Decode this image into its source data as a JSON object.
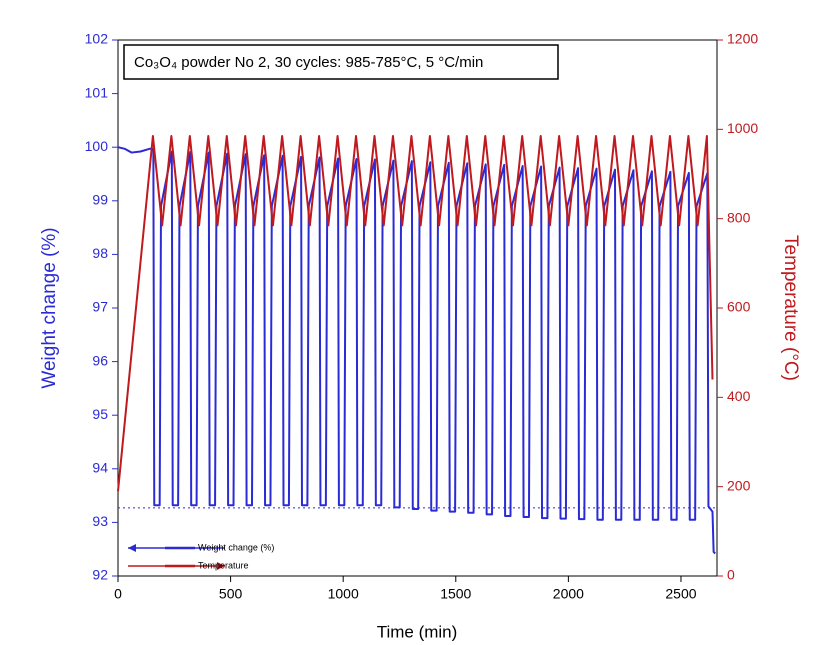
{
  "chart_data": {
    "type": "line",
    "title": "Co₃O₄ powder No 2, 30 cycles: 985-785°C, 5 °C/min",
    "xlabel": "Time (min)",
    "ylabel": "Weight change (%)",
    "y2label": "Temperature (°C)",
    "xlim": [
      0,
      2660
    ],
    "xticks": [
      0,
      500,
      1000,
      1500,
      2000,
      2500
    ],
    "ylim": [
      92,
      102
    ],
    "yticks": [
      92,
      93,
      94,
      95,
      96,
      97,
      98,
      99,
      100,
      101,
      102
    ],
    "y2lim": [
      0,
      1200
    ],
    "y2ticks": [
      0,
      200,
      400,
      600,
      800,
      1000,
      1200
    ],
    "reference_line": 93.27,
    "legend": "lower left",
    "series": [
      {
        "name": "Weight change (%)",
        "color": "#2b2bd6",
        "axis": "y",
        "x": [
          0,
          30,
          60,
          100,
          140,
          157,
          161,
          185,
          191,
          239,
          243,
          267,
          273,
          321,
          325,
          349,
          355,
          403,
          407,
          431,
          437,
          485,
          489,
          513,
          519,
          567,
          571,
          595,
          601,
          649,
          653,
          677,
          683,
          731,
          735,
          759,
          765,
          813,
          817,
          841,
          847,
          895,
          899,
          923,
          929,
          977,
          981,
          1005,
          1011,
          1059,
          1063,
          1087,
          1093,
          1141,
          1145,
          1169,
          1175,
          1223,
          1227,
          1251,
          1257,
          1305,
          1309,
          1333,
          1339,
          1387,
          1391,
          1415,
          1421,
          1469,
          1473,
          1497,
          1503,
          1551,
          1555,
          1579,
          1585,
          1633,
          1637,
          1661,
          1667,
          1715,
          1719,
          1743,
          1749,
          1797,
          1801,
          1825,
          1831,
          1879,
          1883,
          1907,
          1913,
          1961,
          1965,
          1989,
          1995,
          2043,
          2047,
          2071,
          2077,
          2125,
          2129,
          2153,
          2159,
          2207,
          2211,
          2235,
          2241,
          2289,
          2293,
          2317,
          2323,
          2371,
          2375,
          2399,
          2405,
          2453,
          2457,
          2481,
          2487,
          2535,
          2539,
          2563,
          2569,
          2617,
          2622,
          2640,
          2645,
          2652
        ],
        "values": [
          100,
          99.97,
          99.9,
          99.92,
          99.97,
          99.97,
          93.32,
          93.32,
          98.9,
          99.92,
          93.32,
          93.32,
          98.9,
          99.91,
          93.32,
          93.32,
          98.9,
          99.9,
          93.32,
          93.32,
          98.9,
          99.88,
          93.32,
          93.32,
          98.9,
          99.87,
          93.32,
          93.32,
          98.9,
          99.85,
          93.32,
          93.32,
          98.9,
          99.84,
          93.32,
          93.32,
          98.9,
          99.82,
          93.32,
          93.32,
          98.9,
          99.81,
          93.32,
          93.32,
          98.9,
          99.79,
          93.32,
          93.32,
          98.9,
          99.78,
          93.32,
          93.32,
          98.9,
          99.77,
          93.32,
          93.32,
          98.9,
          99.75,
          93.28,
          93.28,
          98.9,
          99.74,
          93.25,
          93.25,
          98.9,
          99.72,
          93.22,
          93.22,
          98.9,
          99.71,
          93.2,
          93.2,
          98.9,
          99.7,
          93.18,
          93.18,
          98.9,
          99.68,
          93.15,
          93.15,
          98.9,
          99.67,
          93.12,
          93.12,
          98.9,
          99.65,
          93.1,
          93.1,
          98.9,
          99.64,
          93.08,
          93.08,
          98.9,
          99.62,
          93.07,
          93.07,
          98.9,
          99.61,
          93.06,
          93.06,
          98.9,
          99.6,
          93.05,
          93.05,
          98.9,
          99.58,
          93.05,
          93.05,
          98.9,
          99.57,
          93.05,
          93.05,
          98.9,
          99.55,
          93.05,
          93.05,
          98.9,
          99.54,
          93.05,
          93.05,
          98.9,
          99.52,
          93.05,
          93.05,
          98.9,
          99.51,
          93.3,
          93.2,
          92.45,
          92.42
        ]
      },
      {
        "name": "Temperature",
        "color": "#c0191e",
        "axis": "y2",
        "x": [
          0,
          155,
          196,
          237,
          278,
          319,
          360,
          401,
          442,
          483,
          524,
          565,
          606,
          647,
          688,
          729,
          770,
          811,
          852,
          893,
          934,
          975,
          1016,
          1057,
          1098,
          1139,
          1180,
          1221,
          1262,
          1303,
          1344,
          1385,
          1426,
          1467,
          1508,
          1549,
          1590,
          1631,
          1672,
          1713,
          1754,
          1795,
          1836,
          1877,
          1918,
          1959,
          2000,
          2041,
          2082,
          2123,
          2164,
          2205,
          2246,
          2287,
          2328,
          2369,
          2410,
          2451,
          2492,
          2533,
          2574,
          2615,
          2640
        ],
        "values": [
          190,
          985,
          785,
          985,
          785,
          985,
          785,
          985,
          785,
          985,
          785,
          985,
          785,
          985,
          785,
          985,
          785,
          985,
          785,
          985,
          785,
          985,
          785,
          985,
          785,
          985,
          785,
          985,
          785,
          985,
          785,
          985,
          785,
          985,
          785,
          985,
          785,
          985,
          785,
          985,
          785,
          985,
          785,
          985,
          785,
          985,
          785,
          985,
          785,
          985,
          785,
          985,
          785,
          985,
          785,
          985,
          785,
          985,
          785,
          985,
          785,
          985,
          440
        ]
      }
    ]
  }
}
